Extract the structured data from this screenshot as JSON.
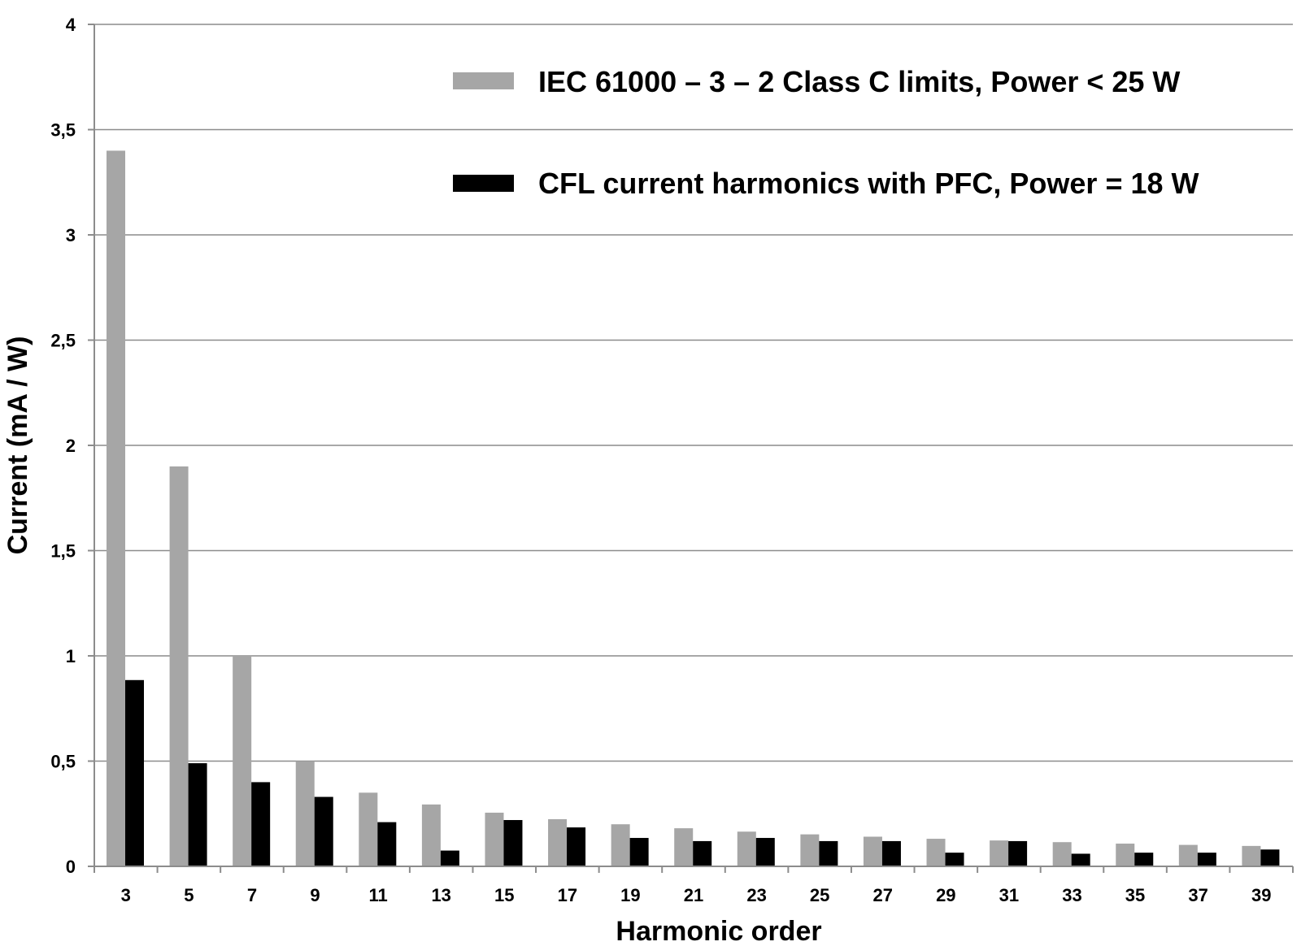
{
  "chart_data": {
    "type": "bar",
    "xlabel": "Harmonic order",
    "ylabel": "Current (mA / W)",
    "ylim": [
      0,
      4
    ],
    "yticks": [
      0,
      0.5,
      1,
      1.5,
      2,
      2.5,
      3,
      3.5,
      4
    ],
    "ytick_labels": [
      "0",
      "0,5",
      "1",
      "1,5",
      "2",
      "2,5",
      "3",
      "3,5",
      "4"
    ],
    "grid": true,
    "legend_position": "top-right",
    "categories": [
      "3",
      "5",
      "7",
      "9",
      "11",
      "13",
      "15",
      "17",
      "19",
      "21",
      "23",
      "25",
      "27",
      "29",
      "31",
      "33",
      "35",
      "37",
      "39"
    ],
    "series": [
      {
        "name": "IEC 61000 – 3 – 2 Class C limits, Power < 25 W",
        "color": "#a6a6a6",
        "values": [
          3.4,
          1.9,
          1.0,
          0.5,
          0.35,
          0.294,
          0.255,
          0.224,
          0.2,
          0.181,
          0.165,
          0.152,
          0.141,
          0.131,
          0.123,
          0.115,
          0.108,
          0.102,
          0.097
        ]
      },
      {
        "name": "CFL current harmonics with PFC, Power = 18 W",
        "color": "#000000",
        "values": [
          0.885,
          0.49,
          0.4,
          0.33,
          0.21,
          0.075,
          0.22,
          0.185,
          0.135,
          0.12,
          0.135,
          0.12,
          0.12,
          0.065,
          0.12,
          0.06,
          0.065,
          0.065,
          0.08
        ]
      }
    ]
  }
}
